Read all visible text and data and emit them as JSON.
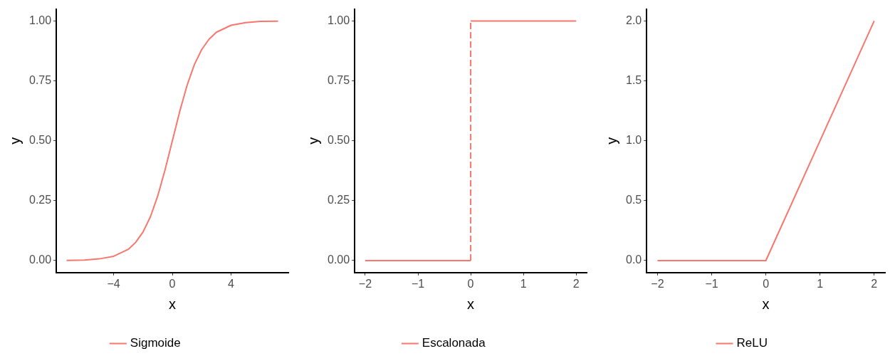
{
  "chart_data": [
    {
      "type": "line",
      "xlabel": "x",
      "ylabel": "y",
      "xlim": [
        -7.9,
        7.9
      ],
      "ylim": [
        -0.05,
        1.05
      ],
      "xticks": [
        {
          "value": -4,
          "label": "−4"
        },
        0,
        4
      ],
      "yticks": [
        {
          "value": 0,
          "label": "0.00"
        },
        {
          "value": 0.25,
          "label": "0.25"
        },
        {
          "value": 0.5,
          "label": "0.50"
        },
        {
          "value": 0.75,
          "label": "0.75"
        },
        {
          "value": 1,
          "label": "1.00"
        }
      ],
      "grid": false,
      "legend": "bottom",
      "marker": "none",
      "line_style": "solid",
      "series": [
        {
          "name": "Sigmoide",
          "color": "#f8766d",
          "x": [
            -7.2,
            -6,
            -5,
            -4,
            -3,
            -2.5,
            -2,
            -1.5,
            -1,
            -0.5,
            0,
            0.5,
            1,
            1.5,
            2,
            2.5,
            3,
            4,
            5,
            6,
            7.2
          ],
          "values": [
            0.001,
            0.002,
            0.007,
            0.018,
            0.047,
            0.076,
            0.119,
            0.182,
            0.269,
            0.378,
            0.5,
            0.622,
            0.731,
            0.818,
            0.881,
            0.924,
            0.953,
            0.982,
            0.993,
            0.998,
            0.999
          ]
        }
      ]
    },
    {
      "type": "line",
      "xlabel": "x",
      "ylabel": "y",
      "xlim": [
        -2.2,
        2.2
      ],
      "ylim": [
        -0.05,
        1.05
      ],
      "xticks": [
        {
          "value": -2,
          "label": "−2"
        },
        {
          "value": -1,
          "label": "−1"
        },
        0,
        1,
        2
      ],
      "yticks": [
        {
          "value": 0,
          "label": "0.00"
        },
        {
          "value": 0.25,
          "label": "0.25"
        },
        {
          "value": 0.5,
          "label": "0.50"
        },
        {
          "value": 0.75,
          "label": "0.75"
        },
        {
          "value": 1,
          "label": "1.00"
        }
      ],
      "grid": false,
      "legend": "bottom",
      "marker": "none",
      "series": [
        {
          "name": "Escalonada",
          "color": "#f8766d",
          "line_style": "solid",
          "x": [
            -2,
            0
          ],
          "values": [
            0,
            0
          ]
        },
        {
          "color": "#f8766d",
          "line_style": "solid",
          "x": [
            0,
            2
          ],
          "values": [
            1,
            1
          ]
        },
        {
          "color": "#f8766d",
          "line_style": "dashed",
          "x": [
            0,
            0
          ],
          "values": [
            0,
            1
          ]
        }
      ]
    },
    {
      "type": "line",
      "xlabel": "x",
      "ylabel": "y",
      "xlim": [
        -2.2,
        2.2
      ],
      "ylim": [
        -0.1,
        2.1
      ],
      "xticks": [
        {
          "value": -2,
          "label": "−2"
        },
        {
          "value": -1,
          "label": "−1"
        },
        0,
        1,
        2
      ],
      "yticks": [
        {
          "value": 0,
          "label": "0.0"
        },
        {
          "value": 0.5,
          "label": "0.5"
        },
        {
          "value": 1,
          "label": "1.0"
        },
        {
          "value": 1.5,
          "label": "1.5"
        },
        {
          "value": 2,
          "label": "2.0"
        }
      ],
      "grid": false,
      "legend": "bottom",
      "marker": "none",
      "line_style": "solid",
      "series": [
        {
          "name": "ReLU",
          "color": "#f8766d",
          "x": [
            -2,
            0,
            2
          ],
          "values": [
            0,
            0,
            2
          ]
        }
      ]
    }
  ]
}
